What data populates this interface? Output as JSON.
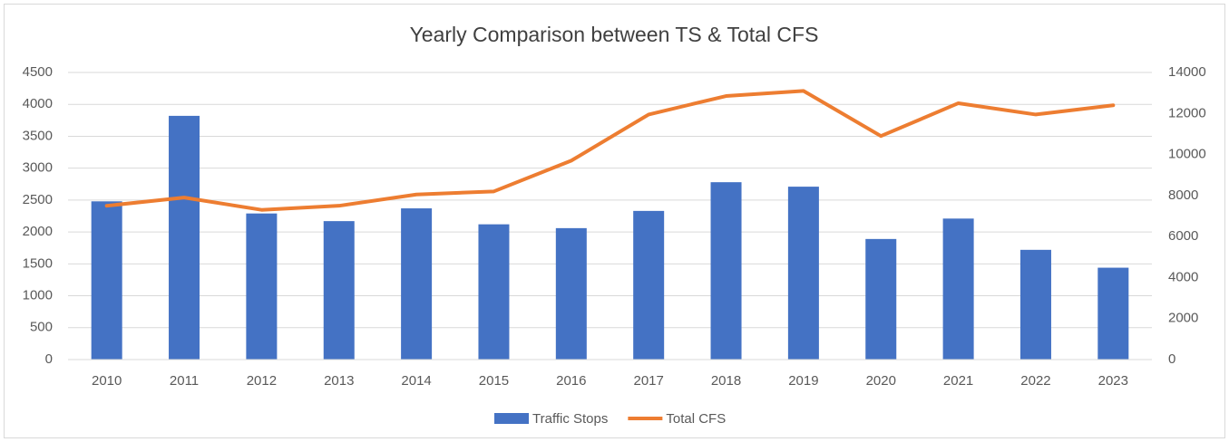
{
  "chart_data": {
    "type": "bar-line",
    "title": "Yearly Comparison between TS & Total CFS",
    "categories": [
      "2010",
      "2011",
      "2012",
      "2013",
      "2014",
      "2015",
      "2016",
      "2017",
      "2018",
      "2019",
      "2020",
      "2021",
      "2022",
      "2023"
    ],
    "series": [
      {
        "name": "Traffic Stops",
        "color": "#4472c4",
        "type": "bar",
        "axis": "y",
        "values": [
          2480,
          3820,
          2290,
          2170,
          2370,
          2120,
          2060,
          2330,
          2780,
          2710,
          1890,
          2210,
          1720,
          1440
        ]
      },
      {
        "name": "Total CFS",
        "color": "#ed7d31",
        "type": "line",
        "axis": "y2",
        "values": [
          7500,
          7900,
          7300,
          7500,
          8050,
          8200,
          9700,
          11950,
          12850,
          13100,
          10900,
          12500,
          11950,
          12400
        ]
      }
    ],
    "ylim": [
      0,
      4500
    ],
    "yticks": [
      0,
      500,
      1000,
      1500,
      2000,
      2500,
      3000,
      3500,
      4000,
      4500
    ],
    "y2lim": [
      0,
      14000
    ],
    "y2ticks": [
      0,
      2000,
      4000,
      6000,
      8000,
      10000,
      12000,
      14000
    ],
    "grid": true,
    "legend": "bottom"
  }
}
